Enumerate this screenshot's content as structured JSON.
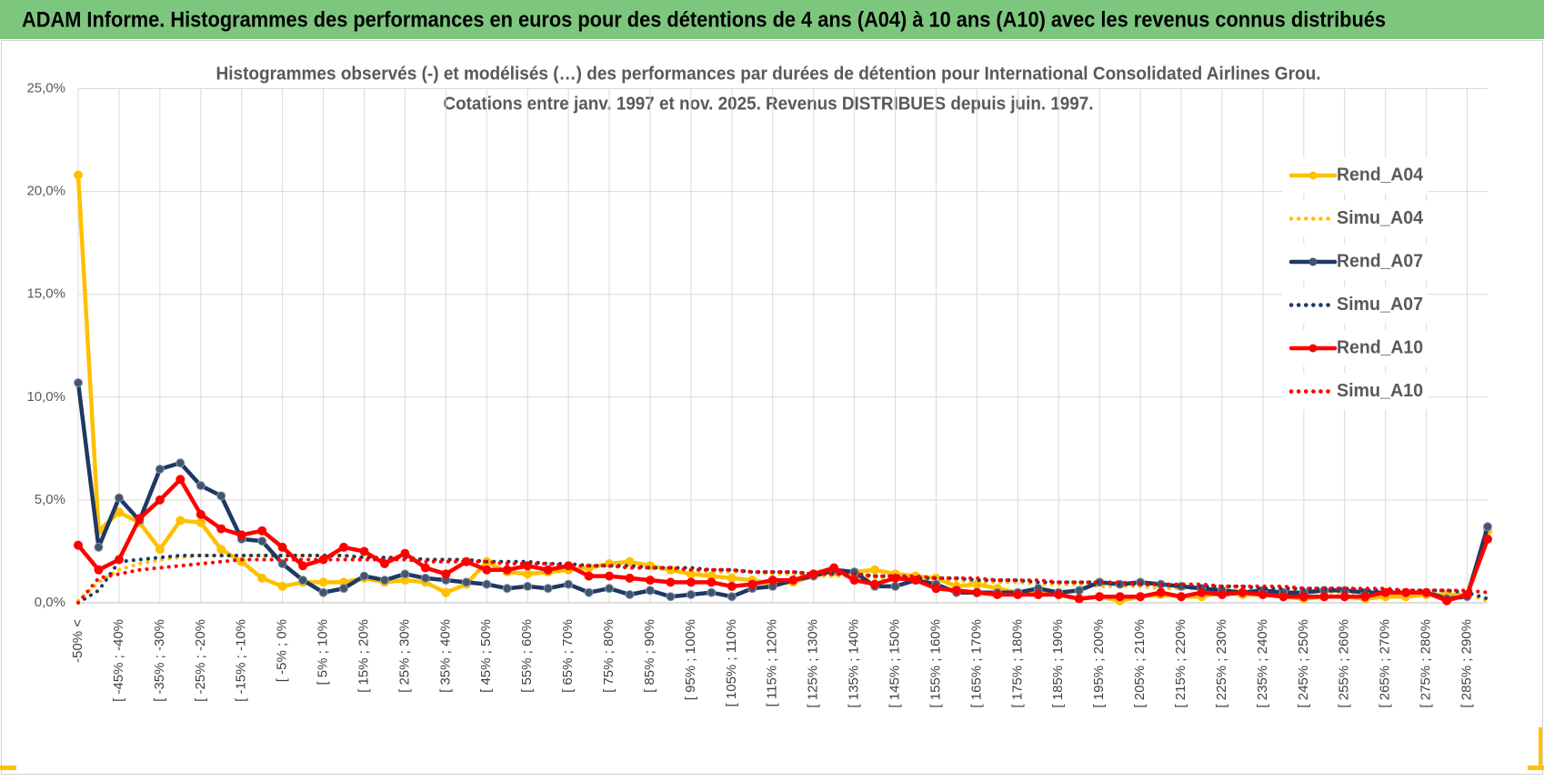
{
  "header": {
    "title": "ADAM Informe. Histogrammes des performances en euros pour des détentions de 4 ans (A04) à 10 ans (A10) avec les revenus connus distribués"
  },
  "chart_data": {
    "type": "line",
    "title": [
      "Histogrammes observés (-) et modélisés (…) des performances par durées de détention pour International Consolidated Airlines Grou.",
      "Cotations entre janv. 1997 et nov. 2025. Revenus DISTRIBUES depuis juin. 1997."
    ],
    "categories": [
      "-50% <",
      null,
      "[ -45% ; -40%",
      null,
      "[ -35% ; -30%",
      null,
      "[ -25% ; -20%",
      null,
      "[ -15% ; -10%",
      null,
      "[ -5% ; 0%",
      null,
      "[ 5% ; 10%",
      null,
      "[ 15% ; 20%",
      null,
      "[ 25% ; 30%",
      null,
      "[ 35% ; 40%",
      null,
      "[ 45% ; 50%",
      null,
      "[ 55% ; 60%",
      null,
      "[ 65% ; 70%",
      null,
      "[ 75% ; 80%",
      null,
      "[ 85% ; 90%",
      null,
      "[ 95% ; 100%",
      null,
      "[ 105% ; 110%",
      null,
      "[ 115% ; 120%",
      null,
      "[ 125% ; 130%",
      null,
      "[ 135% ; 140%",
      null,
      "[ 145% ; 150%",
      null,
      "[ 155% ; 160%",
      null,
      "[ 165% ; 170%",
      null,
      "[ 175% ; 180%",
      null,
      "[ 185% ; 190%",
      null,
      "[ 195% ; 200%",
      null,
      "[ 205% ; 210%",
      null,
      "[ 215% ; 220%",
      null,
      "[ 225% ; 230%",
      null,
      "[ 235% ; 240%",
      null,
      "[ 245% ; 250%",
      null,
      "[ 255% ; 260%",
      null,
      "[ 265% ; 270%",
      null,
      "[ 275% ; 280%",
      null,
      "[ 285% ; 290%",
      null
    ],
    "ylim": [
      0,
      25
    ],
    "yticks": [
      {
        "value": 0,
        "label": "0,0%"
      },
      {
        "value": 5,
        "label": "5,0%"
      },
      {
        "value": 10,
        "label": "10,0%"
      },
      {
        "value": 15,
        "label": "15,0%"
      },
      {
        "value": 20,
        "label": "20,0%"
      },
      {
        "value": 25,
        "label": "25,0%"
      }
    ],
    "grid": true,
    "legend": "right",
    "series": [
      {
        "name": "Rend_A04",
        "color": "#FFC000",
        "line_style": "solid",
        "values": [
          20.8,
          3.5,
          4.4,
          3.9,
          2.6,
          4.0,
          3.9,
          2.6,
          2.0,
          1.2,
          0.8,
          1.0,
          1.0,
          1.0,
          1.2,
          1.0,
          1.1,
          1.0,
          0.5,
          0.9,
          2.0,
          1.5,
          1.4,
          1.5,
          1.6,
          1.7,
          1.9,
          2.0,
          1.8,
          1.6,
          1.4,
          1.3,
          1.2,
          1.1,
          0.9,
          1.0,
          1.3,
          1.5,
          1.5,
          1.6,
          1.4,
          1.3,
          1.2,
          0.8,
          0.9,
          0.7,
          0.5,
          0.5,
          0.4,
          0.2,
          0.3,
          0.1,
          0.3,
          0.4,
          0.3,
          0.3,
          0.5,
          0.4,
          0.4,
          0.3,
          0.2,
          0.3,
          0.3,
          0.2,
          0.3,
          0.3,
          0.4,
          0.4,
          0.4,
          3.5
        ]
      },
      {
        "name": "Simu_A04",
        "color": "#FFC000",
        "line_style": "dotted",
        "values": [
          0.1,
          1.0,
          1.6,
          1.9,
          2.1,
          2.2,
          2.3,
          2.3,
          2.3,
          2.3,
          2.3,
          2.3,
          2.3,
          2.3,
          2.2,
          2.2,
          2.2,
          2.1,
          2.1,
          2.1,
          2.0,
          2.0,
          1.9,
          1.9,
          1.8,
          1.8,
          1.8,
          1.7,
          1.7,
          1.6,
          1.6,
          1.5,
          1.5,
          1.5,
          1.4,
          1.4,
          1.3,
          1.3,
          1.3,
          1.2,
          1.2,
          1.1,
          1.1,
          1.1,
          1.0,
          1.0,
          1.0,
          0.9,
          0.9,
          0.9,
          0.8,
          0.8,
          0.8,
          0.7,
          0.7,
          0.7,
          0.7,
          0.6,
          0.6,
          0.6,
          0.6,
          0.5,
          0.5,
          0.5,
          0.5,
          0.5,
          0.4,
          0.4,
          0.4,
          0.1
        ]
      },
      {
        "name": "Rend_A07",
        "color": "#1F3864",
        "line_style": "solid",
        "values": [
          10.7,
          2.7,
          5.1,
          4.0,
          6.5,
          6.8,
          5.7,
          5.2,
          3.1,
          3.0,
          1.9,
          1.1,
          0.5,
          0.7,
          1.3,
          1.1,
          1.4,
          1.2,
          1.1,
          1.0,
          0.9,
          0.7,
          0.8,
          0.7,
          0.9,
          0.5,
          0.7,
          0.4,
          0.6,
          0.3,
          0.4,
          0.5,
          0.3,
          0.7,
          0.8,
          1.1,
          1.3,
          1.6,
          1.5,
          0.8,
          0.8,
          1.1,
          0.9,
          0.5,
          0.5,
          0.5,
          0.5,
          0.7,
          0.5,
          0.6,
          1.0,
          0.9,
          1.0,
          0.9,
          0.8,
          0.7,
          0.6,
          0.5,
          0.6,
          0.5,
          0.5,
          0.6,
          0.6,
          0.5,
          0.5,
          0.5,
          0.5,
          0.2,
          0.3,
          3.7
        ]
      },
      {
        "name": "Simu_A07",
        "color": "#1F3864",
        "line_style": "dotted",
        "values": [
          0.0,
          0.6,
          2.0,
          2.1,
          2.2,
          2.3,
          2.3,
          2.3,
          2.3,
          2.3,
          2.3,
          2.3,
          2.3,
          2.3,
          2.2,
          2.2,
          2.2,
          2.1,
          2.1,
          2.1,
          2.0,
          2.0,
          2.0,
          1.9,
          1.9,
          1.8,
          1.8,
          1.8,
          1.7,
          1.7,
          1.7,
          1.6,
          1.6,
          1.5,
          1.5,
          1.5,
          1.4,
          1.4,
          1.4,
          1.3,
          1.3,
          1.2,
          1.2,
          1.2,
          1.1,
          1.1,
          1.1,
          1.0,
          1.0,
          1.0,
          1.0,
          0.9,
          0.9,
          0.9,
          0.8,
          0.8,
          0.8,
          0.8,
          0.7,
          0.7,
          0.7,
          0.7,
          0.7,
          0.6,
          0.6,
          0.6,
          0.6,
          0.6,
          0.5,
          0.2
        ]
      },
      {
        "name": "Rend_A10",
        "color": "#FF0000",
        "line_style": "solid",
        "values": [
          2.8,
          1.6,
          2.1,
          4.1,
          5.0,
          6.0,
          4.3,
          3.6,
          3.3,
          3.5,
          2.7,
          1.8,
          2.1,
          2.7,
          2.5,
          1.9,
          2.4,
          1.7,
          1.4,
          2.0,
          1.6,
          1.6,
          1.8,
          1.6,
          1.8,
          1.3,
          1.3,
          1.2,
          1.1,
          1.0,
          1.0,
          1.0,
          0.8,
          0.9,
          1.1,
          1.1,
          1.4,
          1.7,
          1.1,
          0.9,
          1.2,
          1.1,
          0.7,
          0.6,
          0.5,
          0.4,
          0.4,
          0.4,
          0.4,
          0.2,
          0.3,
          0.3,
          0.3,
          0.5,
          0.3,
          0.5,
          0.4,
          0.5,
          0.4,
          0.3,
          0.3,
          0.3,
          0.3,
          0.3,
          0.5,
          0.5,
          0.5,
          0.1,
          0.4,
          3.1
        ]
      },
      {
        "name": "Simu_A10",
        "color": "#FF0000",
        "line_style": "dotted",
        "values": [
          0.0,
          1.2,
          1.4,
          1.6,
          1.7,
          1.8,
          1.9,
          2.0,
          2.1,
          2.1,
          2.1,
          2.1,
          2.1,
          2.1,
          2.1,
          2.1,
          2.1,
          2.0,
          2.0,
          2.0,
          2.0,
          1.9,
          1.9,
          1.9,
          1.8,
          1.8,
          1.8,
          1.7,
          1.7,
          1.7,
          1.6,
          1.6,
          1.6,
          1.5,
          1.5,
          1.5,
          1.4,
          1.4,
          1.4,
          1.3,
          1.3,
          1.3,
          1.2,
          1.2,
          1.2,
          1.1,
          1.1,
          1.1,
          1.0,
          1.0,
          1.0,
          1.0,
          0.9,
          0.9,
          0.9,
          0.9,
          0.8,
          0.8,
          0.8,
          0.8,
          0.7,
          0.7,
          0.7,
          0.7,
          0.7,
          0.6,
          0.6,
          0.6,
          0.6,
          0.5
        ]
      }
    ]
  }
}
